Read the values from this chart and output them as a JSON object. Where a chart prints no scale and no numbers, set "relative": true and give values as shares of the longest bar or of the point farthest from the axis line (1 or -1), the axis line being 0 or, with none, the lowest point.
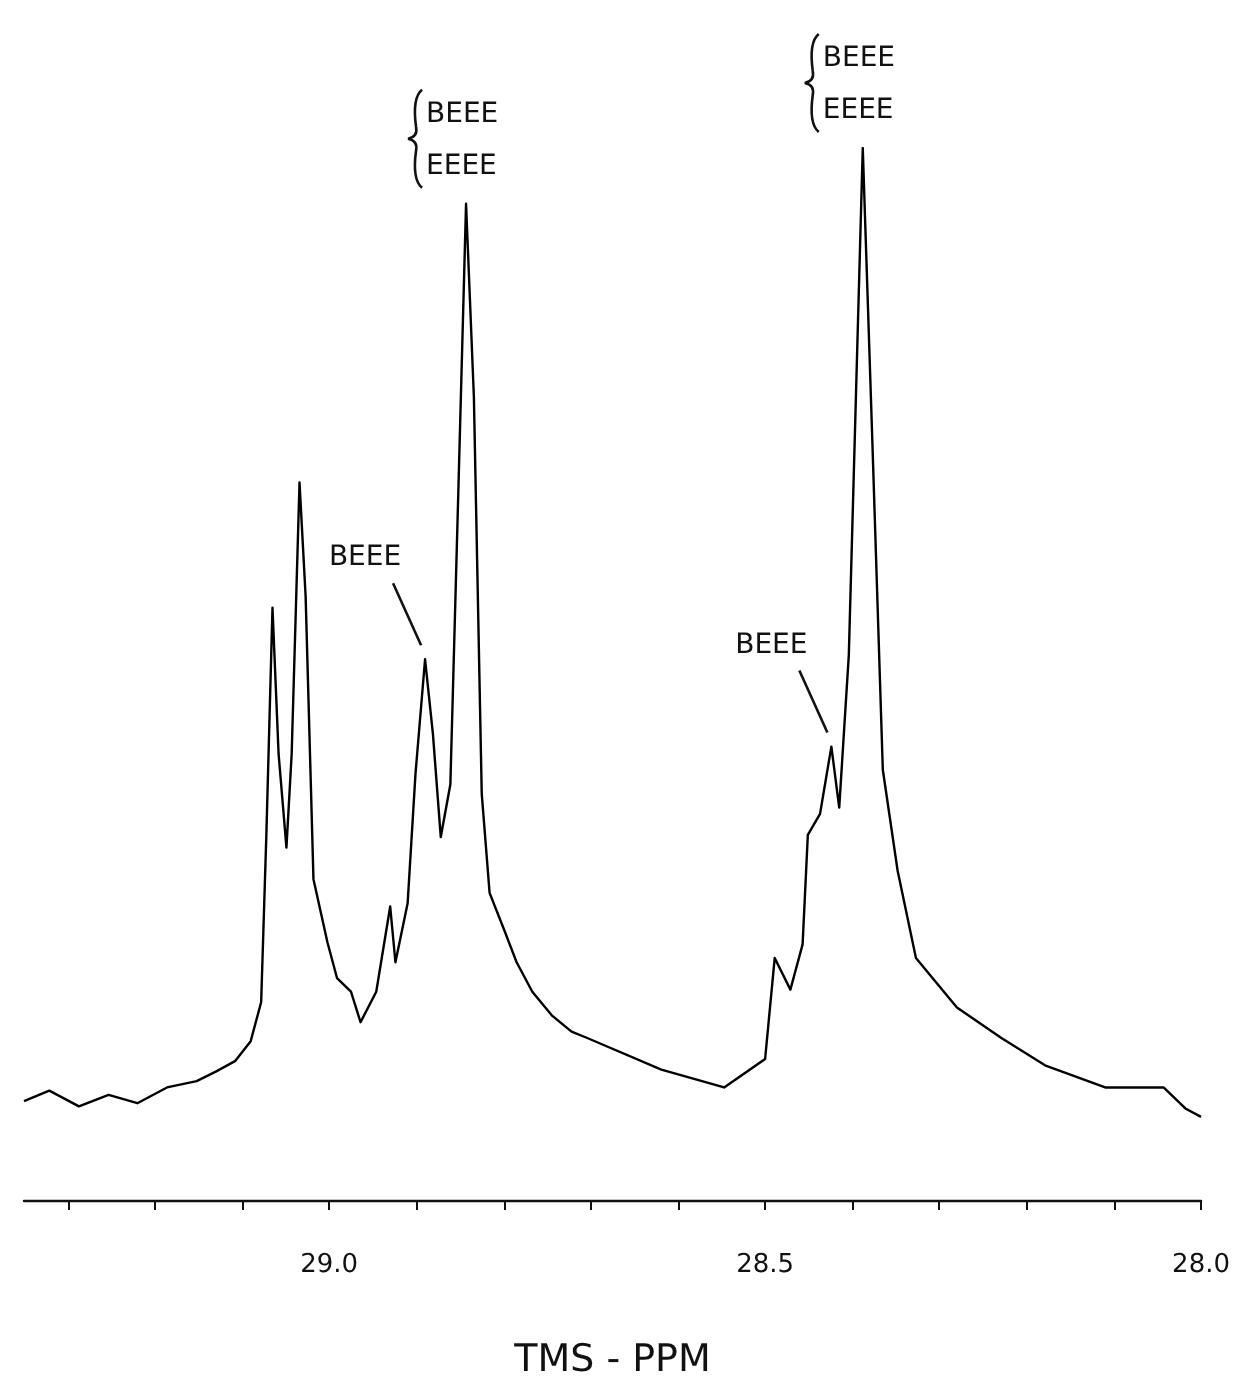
{
  "chart_data": {
    "type": "line",
    "relative": true,
    "xlabel": "TMS - PPM",
    "xlim": [
      29.35,
      28.0
    ],
    "xticks": [
      {
        "value": 29.3,
        "label": null
      },
      {
        "value": 29.2,
        "label": null
      },
      {
        "value": 29.1,
        "label": null
      },
      {
        "value": 29.0,
        "label": "29.0"
      },
      {
        "value": 28.9,
        "label": null
      },
      {
        "value": 28.8,
        "label": null
      },
      {
        "value": 28.7,
        "label": null
      },
      {
        "value": 28.6,
        "label": null
      },
      {
        "value": 28.5,
        "label": "28.5"
      },
      {
        "value": 28.4,
        "label": null
      },
      {
        "value": 28.3,
        "label": null
      },
      {
        "value": 28.2,
        "label": null
      },
      {
        "value": 28.1,
        "label": null
      },
      {
        "value": 28.0,
        "label": "28.0"
      }
    ],
    "x": [
      29.35,
      29.321,
      29.287,
      29.253,
      29.22,
      29.186,
      29.152,
      29.13,
      29.108,
      29.09,
      29.078,
      29.072,
      29.065,
      29.058,
      29.049,
      29.043,
      29.034,
      29.027,
      29.018,
      29.002,
      28.991,
      28.975,
      28.964,
      28.946,
      28.93,
      28.924,
      28.91,
      28.901,
      28.89,
      28.881,
      28.872,
      28.861,
      28.852,
      28.843,
      28.834,
      28.825,
      28.816,
      28.798,
      28.785,
      28.767,
      28.744,
      28.722,
      28.704,
      28.619,
      28.547,
      28.5,
      28.489,
      28.471,
      28.457,
      28.451,
      28.437,
      28.424,
      28.415,
      28.404,
      28.388,
      28.377,
      28.365,
      28.348,
      28.327,
      28.28,
      28.229,
      28.179,
      28.11,
      28.043,
      28.018,
      28.0
    ],
    "series": [
      {
        "color": "#000000",
        "values": [
          0.094,
          0.104,
          0.089,
          0.1,
          0.092,
          0.107,
          0.113,
          0.122,
          0.132,
          0.151,
          0.188,
          0.348,
          0.563,
          0.424,
          0.335,
          0.424,
          0.682,
          0.574,
          0.305,
          0.245,
          0.211,
          0.198,
          0.169,
          0.198,
          0.279,
          0.226,
          0.282,
          0.405,
          0.514,
          0.443,
          0.345,
          0.395,
          0.669,
          0.947,
          0.763,
          0.386,
          0.292,
          0.254,
          0.226,
          0.198,
          0.175,
          0.16,
          0.154,
          0.124,
          0.107,
          0.134,
          0.23,
          0.2,
          0.243,
          0.347,
          0.367,
          0.431,
          0.373,
          0.518,
          1,
          0.721,
          0.409,
          0.313,
          0.23,
          0.183,
          0.154,
          0.128,
          0.107,
          0.107,
          0.087,
          0.079
        ]
      }
    ],
    "annotations": [
      {
        "text": "BEEE",
        "x": 28.89,
        "y": 0.514
      },
      {
        "text": "BEEE\nEEEE",
        "x": 28.843,
        "y": 0.947
      },
      {
        "text": "BEEE",
        "x": 28.424,
        "y": 0.431
      },
      {
        "text": "BEEE\nEEEE",
        "x": 28.388,
        "y": 1
      }
    ]
  }
}
